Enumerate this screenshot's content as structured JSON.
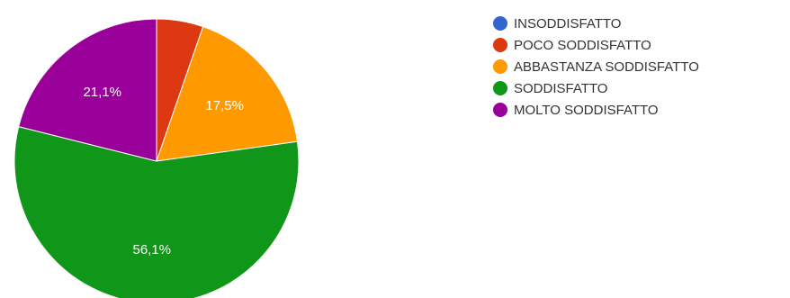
{
  "chart_data": {
    "type": "pie",
    "series": [
      {
        "name": "INSODDISFATTO",
        "value": 0,
        "color": "#3366cc"
      },
      {
        "name": "POCO SODDISFATTO",
        "value": 5.3,
        "color": "#dc3912"
      },
      {
        "name": "ABBASTANZA SODDISFATTO",
        "value": 17.5,
        "color": "#ff9900"
      },
      {
        "name": "SODDISFATTO",
        "value": 56.1,
        "color": "#109618"
      },
      {
        "name": "MOLTO SODDISFATTO",
        "value": 21.1,
        "color": "#990099"
      }
    ],
    "data_labels": [
      "",
      "",
      "17,5%",
      "56,1%",
      "21,1%"
    ],
    "start_angle_deg": 90,
    "direction": "clockwise",
    "legend_position": "right"
  }
}
